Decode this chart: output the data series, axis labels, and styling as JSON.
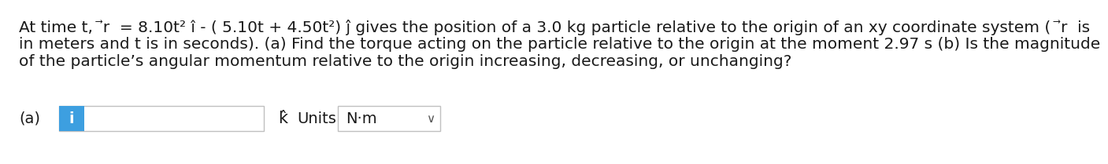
{
  "bg_color": "#ffffff",
  "text_color": "#1a1a1a",
  "line1": "At time t,  ⃗r  = 8.10t² î - ( 5.10t + 4.50t²) ĵ gives the position of a 3.0 kg particle relative to the origin of an xy coordinate system (  ⃗r  is",
  "line2": "in meters and t is in seconds). (a) Find the torque acting on the particle relative to the origin at the moment 2.97 s (b) Is the magnitude",
  "line3": "of the particle’s angular momentum relative to the origin increasing, decreasing, or unchanging?",
  "label_a": "(a)",
  "button_label": "i",
  "button_color": "#3d9fe0",
  "button_text_color": "#ffffff",
  "k_hat_label": "k̂",
  "units_label": "Units",
  "units_value": "N·m",
  "font_size_para": 14.5,
  "font_size_ui": 14
}
